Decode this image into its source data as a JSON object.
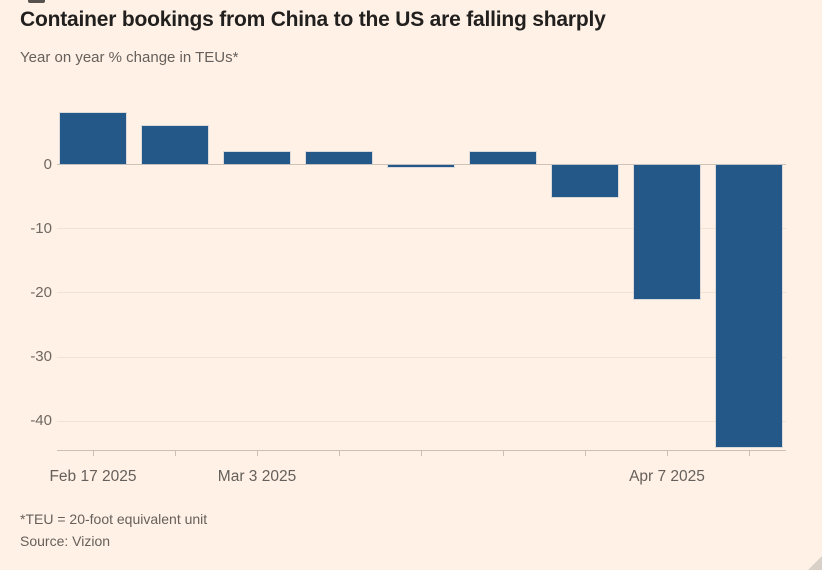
{
  "header": {
    "title": "Container bookings from China to the US are falling sharply",
    "subtitle": "Year on year % change in TEUs*"
  },
  "footer": {
    "note": "*TEU = 20-foot equivalent unit",
    "source": "Source: Vizion"
  },
  "colors": {
    "background": "#FFF1E5",
    "bar": "#245889",
    "title_text": "#21201E",
    "muted_text": "#66605C",
    "grid_line": "#F2E2D2",
    "zero_line": "#CFC3B7",
    "axis_line": "#CCC0B4"
  },
  "chart_data": {
    "type": "bar",
    "title": "Container bookings from China to the US are falling sharply",
    "ylabel": "Year on year % change in TEUs*",
    "values": [
      8,
      6,
      2,
      2,
      -0.3,
      2,
      -5,
      -21,
      -44
    ],
    "bar_count": 9,
    "x_interval": "weekly",
    "x_tick_labels": [
      {
        "bar_index": 0,
        "label": "Feb 17 2025"
      },
      {
        "bar_index": 2,
        "label": "Mar 3 2025"
      },
      {
        "bar_index": 7,
        "label": "Apr 7 2025"
      }
    ],
    "y_ticks": [
      0,
      -10,
      -20,
      -30,
      -40
    ],
    "ylim": [
      9.3,
      -44.5
    ],
    "grid": "horizontal",
    "legend": "none"
  }
}
